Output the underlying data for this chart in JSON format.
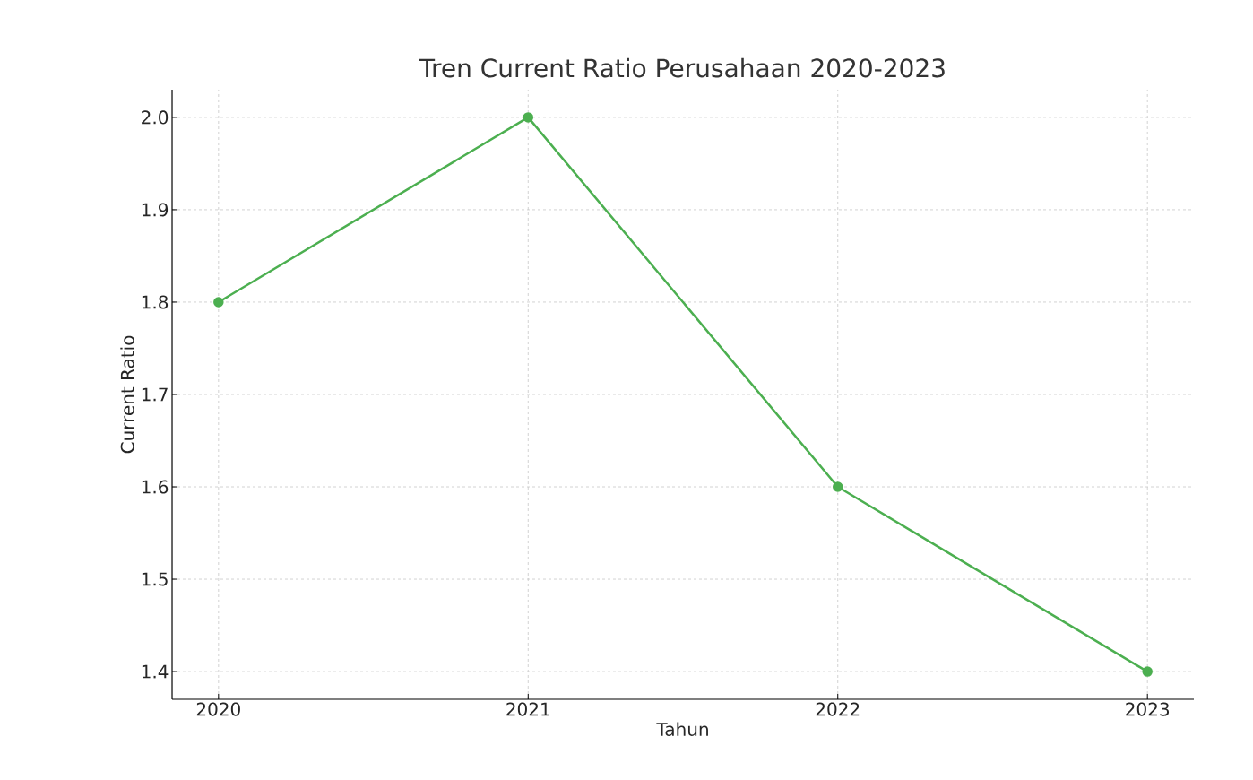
{
  "chart_data": {
    "type": "line",
    "title": "Tren Current Ratio Perusahaan 2020-2023",
    "xlabel": "Tahun",
    "ylabel": "Current Ratio",
    "x": [
      2020,
      2021,
      2022,
      2023
    ],
    "series": [
      {
        "color": "#4caf50",
        "values": [
          1.8,
          2.0,
          1.6,
          1.4
        ]
      }
    ],
    "xlim": [
      2019.85,
      2023.15
    ],
    "xticks": [
      2020,
      2021,
      2022,
      2023
    ],
    "ylim": [
      1.37,
      2.03
    ],
    "yticks": [
      1.4,
      1.5,
      1.6,
      1.7,
      1.8,
      1.9,
      {
        "value": 2,
        "label": "2.0"
      }
    ],
    "grid": true,
    "marker": "circle",
    "line_style": "solid"
  }
}
